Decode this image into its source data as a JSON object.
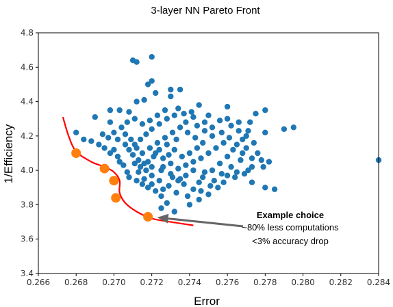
{
  "chart_data": {
    "type": "scatter",
    "title": "3-layer NN Pareto Front",
    "xlabel": "Error",
    "ylabel": "1/Efficiency",
    "xlim": [
      0.266,
      0.284
    ],
    "ylim": [
      3.4,
      4.8
    ],
    "xticks": [
      "0.266",
      "0.268",
      "0.270",
      "0.272",
      "0.274",
      "0.276",
      "0.278",
      "0.280",
      "0.282",
      "0.284"
    ],
    "yticks": [
      "3.4",
      "3.6",
      "3.8",
      "4.0",
      "4.2",
      "4.4",
      "4.6",
      "4.8"
    ],
    "grid": false,
    "colors": {
      "points": "#1f77b4",
      "pareto_points": "#ff7f0e",
      "pareto_curve": "#ff0000",
      "arrow": "#666666"
    },
    "series": [
      {
        "points": [
          [
            0.272,
            4.66
          ],
          [
            0.271,
            4.64
          ],
          [
            0.2712,
            4.63
          ],
          [
            0.272,
            4.52
          ],
          [
            0.2718,
            4.5
          ],
          [
            0.273,
            4.47
          ],
          [
            0.2735,
            4.47
          ],
          [
            0.2722,
            4.45
          ],
          [
            0.273,
            4.43
          ],
          [
            0.2745,
            4.38
          ],
          [
            0.276,
            4.37
          ],
          [
            0.2775,
            4.33
          ],
          [
            0.278,
            4.35
          ],
          [
            0.2703,
            4.35
          ],
          [
            0.2698,
            4.35
          ],
          [
            0.2708,
            4.34
          ],
          [
            0.2712,
            4.4
          ],
          [
            0.2716,
            4.41
          ],
          [
            0.269,
            4.31
          ],
          [
            0.2698,
            4.28
          ],
          [
            0.276,
            4.3
          ],
          [
            0.2772,
            4.28
          ],
          [
            0.279,
            4.24
          ],
          [
            0.2795,
            4.25
          ],
          [
            0.278,
            4.22
          ],
          [
            0.277,
            4.2
          ],
          [
            0.2768,
            4.18
          ],
          [
            0.2765,
            4.15
          ],
          [
            0.277,
            4.13
          ],
          [
            0.2768,
            4.1
          ],
          [
            0.2773,
            4.07
          ],
          [
            0.2778,
            4.06
          ],
          [
            0.2782,
            4.05
          ],
          [
            0.2779,
            4.02
          ],
          [
            0.2771,
            4.0
          ],
          [
            0.2765,
            3.99
          ],
          [
            0.276,
            3.97
          ],
          [
            0.2773,
            3.93
          ],
          [
            0.278,
            3.9
          ],
          [
            0.2785,
            3.89
          ],
          [
            0.284,
            4.06
          ],
          [
            0.268,
            4.22
          ],
          [
            0.2684,
            4.18
          ],
          [
            0.2688,
            4.17
          ],
          [
            0.2692,
            4.15
          ],
          [
            0.2695,
            4.13
          ],
          [
            0.2698,
            4.1
          ],
          [
            0.27,
            4.12
          ],
          [
            0.2702,
            4.08
          ],
          [
            0.2703,
            4.05
          ],
          [
            0.2705,
            4.03
          ],
          [
            0.2707,
            3.99
          ],
          [
            0.2708,
            3.96
          ],
          [
            0.2712,
            3.94
          ],
          [
            0.2715,
            3.92
          ],
          [
            0.2718,
            3.9
          ],
          [
            0.2722,
            3.88
          ],
          [
            0.2725,
            3.85
          ],
          [
            0.2728,
            3.81
          ],
          [
            0.2725,
            3.78
          ],
          [
            0.2732,
            3.76
          ],
          [
            0.274,
            3.8
          ],
          [
            0.2745,
            3.83
          ],
          [
            0.275,
            3.86
          ],
          [
            0.2755,
            3.9
          ],
          [
            0.2745,
            3.93
          ],
          [
            0.2735,
            3.95
          ],
          [
            0.273,
            3.98
          ],
          [
            0.2725,
            4.0
          ],
          [
            0.272,
            4.02
          ],
          [
            0.2716,
            4.04
          ],
          [
            0.2713,
            4.06
          ],
          [
            0.271,
            4.09
          ],
          [
            0.2708,
            4.12
          ],
          [
            0.2711,
            4.15
          ],
          [
            0.2714,
            4.18
          ],
          [
            0.2717,
            4.21
          ],
          [
            0.272,
            4.24
          ],
          [
            0.2724,
            4.27
          ],
          [
            0.2728,
            4.3
          ],
          [
            0.2732,
            4.32
          ],
          [
            0.2737,
            4.33
          ],
          [
            0.2742,
            4.31
          ],
          [
            0.2748,
            4.28
          ],
          [
            0.2752,
            4.25
          ],
          [
            0.2757,
            4.22
          ],
          [
            0.2761,
            4.19
          ],
          [
            0.2758,
            4.16
          ],
          [
            0.2754,
            4.13
          ],
          [
            0.275,
            4.1
          ],
          [
            0.2746,
            4.07
          ],
          [
            0.2742,
            4.05
          ],
          [
            0.2738,
            4.03
          ],
          [
            0.2734,
            4.01
          ],
          [
            0.273,
            4.04
          ],
          [
            0.2726,
            4.07
          ],
          [
            0.2722,
            4.1
          ],
          [
            0.2719,
            4.13
          ],
          [
            0.2723,
            4.16
          ],
          [
            0.2727,
            4.19
          ],
          [
            0.2731,
            4.22
          ],
          [
            0.2735,
            4.25
          ],
          [
            0.2739,
            4.22
          ],
          [
            0.2743,
            4.19
          ],
          [
            0.2747,
            4.16
          ],
          [
            0.2744,
            4.13
          ],
          [
            0.274,
            4.1
          ],
          [
            0.2736,
            4.08
          ],
          [
            0.2732,
            4.12
          ],
          [
            0.2728,
            4.15
          ],
          [
            0.2724,
            4.12
          ],
          [
            0.2721,
            4.08
          ],
          [
            0.2718,
            4.05
          ],
          [
            0.2715,
            4.1
          ],
          [
            0.2712,
            4.13
          ],
          [
            0.2709,
            4.18
          ],
          [
            0.2706,
            4.21
          ],
          [
            0.2704,
            4.25
          ],
          [
            0.2707,
            4.28
          ],
          [
            0.2711,
            4.3
          ],
          [
            0.2715,
            4.27
          ],
          [
            0.2719,
            4.29
          ],
          [
            0.2723,
            4.32
          ],
          [
            0.2727,
            4.35
          ],
          [
            0.2734,
            4.36
          ],
          [
            0.2741,
            4.34
          ],
          [
            0.275,
            4.32
          ],
          [
            0.2756,
            4.29
          ],
          [
            0.2762,
            4.26
          ],
          [
            0.2766,
            4.23
          ],
          [
            0.2752,
            4.2
          ],
          [
            0.2748,
            4.23
          ],
          [
            0.2744,
            4.26
          ],
          [
            0.2738,
            4.28
          ],
          [
            0.2733,
            4.18
          ],
          [
            0.2729,
            4.09
          ],
          [
            0.2726,
            4.02
          ],
          [
            0.2731,
            3.96
          ],
          [
            0.2737,
            3.92
          ],
          [
            0.2742,
            3.89
          ],
          [
            0.2747,
            3.96
          ],
          [
            0.2752,
            4.0
          ],
          [
            0.2756,
            4.04
          ],
          [
            0.276,
            4.08
          ],
          [
            0.2763,
            4.12
          ],
          [
            0.2767,
            4.06
          ],
          [
            0.2762,
            4.02
          ],
          [
            0.2757,
            3.98
          ],
          [
            0.2753,
            3.94
          ],
          [
            0.2748,
            3.99
          ],
          [
            0.2742,
            4.0
          ],
          [
            0.2738,
            3.97
          ],
          [
            0.2734,
            3.94
          ],
          [
            0.2729,
            3.91
          ],
          [
            0.2724,
            3.94
          ],
          [
            0.272,
            3.97
          ],
          [
            0.2717,
            4.0
          ],
          [
            0.2714,
            4.02
          ],
          [
            0.2711,
            4.04
          ],
          [
            0.2713,
            3.99
          ],
          [
            0.2716,
            3.95
          ],
          [
            0.272,
            3.92
          ],
          [
            0.2726,
            3.89
          ],
          [
            0.2733,
            3.87
          ],
          [
            0.2739,
            3.85
          ],
          [
            0.2746,
            3.88
          ],
          [
            0.2751,
            3.91
          ],
          [
            0.2758,
            3.93
          ],
          [
            0.2764,
            3.96
          ],
          [
            0.2769,
            3.98
          ],
          [
            0.2773,
            4.02
          ],
          [
            0.2776,
            4.1
          ],
          [
            0.2774,
            4.16
          ],
          [
            0.2771,
            4.23
          ],
          [
            0.2766,
            4.28
          ],
          [
            0.2702,
            4.18
          ],
          [
            0.27,
            4.22
          ],
          [
            0.2697,
            4.19
          ],
          [
            0.2694,
            4.21
          ],
          [
            0.2706,
            4.15
          ]
        ]
      },
      {
        "points": [
          [
            0.268,
            4.1
          ],
          [
            0.2695,
            4.01
          ],
          [
            0.27,
            3.94
          ],
          [
            0.2701,
            3.84
          ],
          [
            0.2718,
            3.73
          ]
        ]
      }
    ],
    "pareto_curve": [
      [
        0.2673,
        4.31
      ],
      [
        0.2676,
        4.2
      ],
      [
        0.268,
        4.11
      ],
      [
        0.2688,
        4.05
      ],
      [
        0.2695,
        4.02
      ],
      [
        0.27,
        3.99
      ],
      [
        0.2703,
        3.94
      ],
      [
        0.2703,
        3.87
      ],
      [
        0.2706,
        3.81
      ],
      [
        0.2712,
        3.76
      ],
      [
        0.272,
        3.72
      ],
      [
        0.273,
        3.7
      ],
      [
        0.2742,
        3.68
      ]
    ],
    "annotation": {
      "title": "Example choice",
      "lines": [
        "~80% less computations",
        "<3% accuracy drop"
      ],
      "arrow_to": [
        0.272,
        3.73
      ]
    }
  }
}
